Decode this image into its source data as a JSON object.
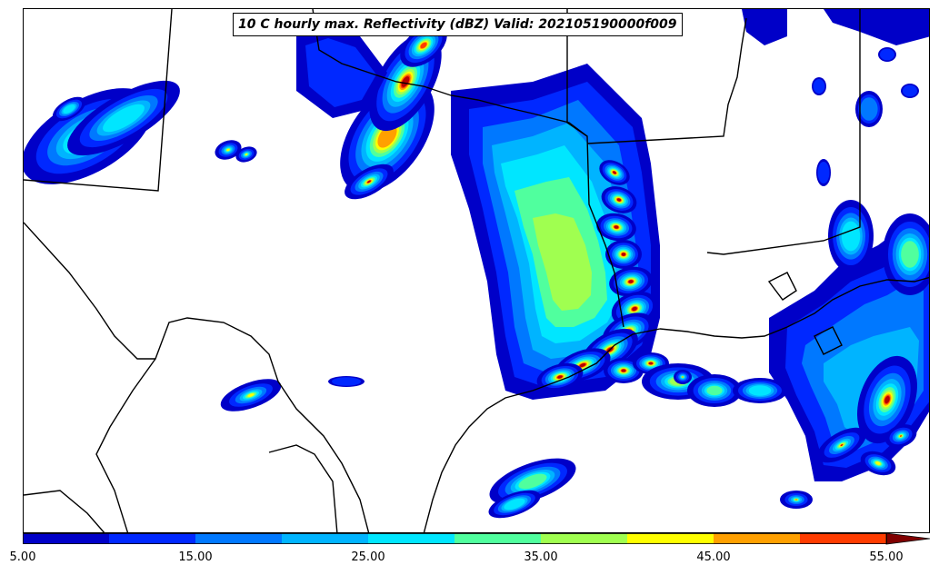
{
  "title": "10 C hourly max. Reflectivity (dBZ) Valid: 202105190000f009",
  "colorbar": {
    "levels": [
      5,
      10,
      15,
      20,
      25,
      30,
      35,
      40,
      45,
      50,
      55
    ],
    "colors": [
      "#0000c8",
      "#0028ff",
      "#0078ff",
      "#00b4ff",
      "#00e6ff",
      "#50ff9e",
      "#a0ff50",
      "#ffff00",
      "#ffa000",
      "#ff3c00",
      "#b40000"
    ],
    "extend_color": "#800000",
    "tick_labels": [
      "5.00",
      "15.00",
      "25.00",
      "35.00",
      "45.00",
      "55.00"
    ]
  },
  "map": {
    "land_color": "#ffffff",
    "border_color": "#000000"
  }
}
